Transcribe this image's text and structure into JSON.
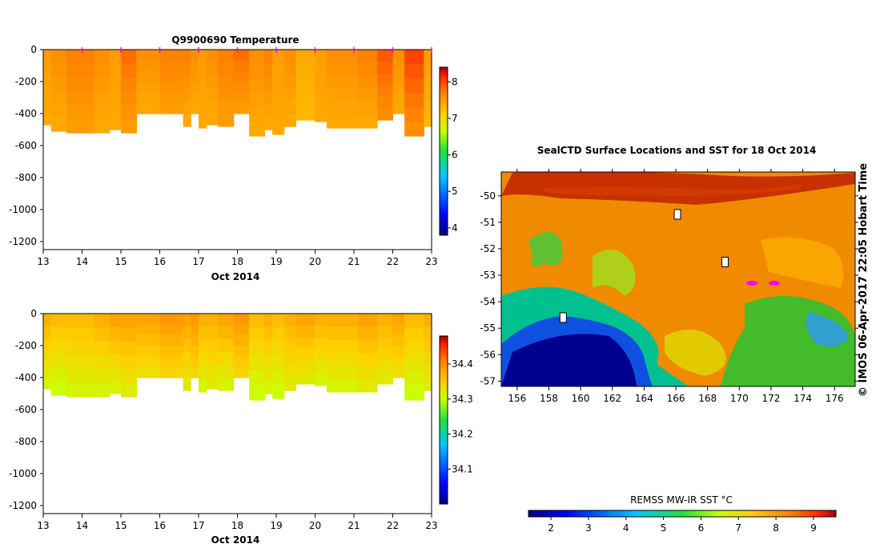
{
  "panels": {
    "temperature": {
      "title": "Q9900690  Temperature",
      "xlabel": "Oct 2014",
      "x_ticks": [
        "13",
        "14",
        "15",
        "16",
        "17",
        "18",
        "19",
        "20",
        "21",
        "22",
        "23"
      ],
      "y_ticks": [
        "0",
        "-200",
        "-400",
        "-600",
        "-800",
        "-1000",
        "-1200"
      ],
      "colorbar_ticks": [
        "4",
        "5",
        "6",
        "7",
        "8"
      ]
    },
    "salinity": {
      "title": "",
      "xlabel": "Oct 2014",
      "x_ticks": [
        "13",
        "14",
        "15",
        "16",
        "17",
        "18",
        "19",
        "20",
        "21",
        "22",
        "23"
      ],
      "y_ticks": [
        "0",
        "-200",
        "-400",
        "-600",
        "-800",
        "-1000",
        "-1200"
      ],
      "colorbar_ticks": [
        "34.1",
        "34.2",
        "34.3",
        "34.4"
      ]
    },
    "map": {
      "title": "SealCTD Surface Locations and SST for 18 Oct 2014",
      "x_ticks": [
        "156",
        "158",
        "160",
        "162",
        "164",
        "166",
        "168",
        "170",
        "172",
        "174",
        "176"
      ],
      "y_ticks": [
        "-50",
        "-51",
        "-52",
        "-53",
        "-54",
        "-55",
        "-56",
        "-57"
      ],
      "credit": "© IMOS 06-Apr-2017 22:05 Hobart Time",
      "colorbar_label": "REMSS MW-IR SST °C",
      "colorbar_ticks": [
        "2",
        "3",
        "4",
        "5",
        "6",
        "7",
        "8",
        "9"
      ]
    }
  },
  "colors": {
    "jet_ramp": [
      "#00007f",
      "#0000ff",
      "#00a0ff",
      "#00ffff",
      "#40ff80",
      "#a0ff00",
      "#ffff00",
      "#ffa000",
      "#ff4000",
      "#b00000",
      "#7f0000"
    ],
    "profile_marker": "#ff00ff"
  },
  "chart_data": [
    {
      "type": "heatmap",
      "title": "Q9900690  Temperature",
      "xlabel": "Oct 2014",
      "ylabel": "",
      "xlim": [
        13,
        23
      ],
      "ylim": [
        -1250,
        0
      ],
      "clim": [
        3.8,
        8.4
      ],
      "colorbar_ticks": [
        4,
        5,
        6,
        7,
        8
      ],
      "profiles": [
        {
          "time": 13.0,
          "max_depth": -470,
          "temp_surface": 7.5,
          "temp_deep": 7.4
        },
        {
          "time": 13.2,
          "max_depth": -510,
          "temp_surface": 7.6,
          "temp_deep": 7.4
        },
        {
          "time": 13.6,
          "max_depth": -520,
          "temp_surface": 7.7,
          "temp_deep": 7.5
        },
        {
          "time": 14.3,
          "max_depth": -520,
          "temp_surface": 7.6,
          "temp_deep": 7.4
        },
        {
          "time": 14.7,
          "max_depth": -500,
          "temp_surface": 7.5,
          "temp_deep": 7.4
        },
        {
          "time": 15.0,
          "max_depth": -520,
          "temp_surface": 7.8,
          "temp_deep": 7.5
        },
        {
          "time": 15.4,
          "max_depth": -400,
          "temp_surface": 7.6,
          "temp_deep": 7.4
        },
        {
          "time": 16.0,
          "max_depth": -400,
          "temp_surface": 7.7,
          "temp_deep": 7.5
        },
        {
          "time": 16.6,
          "max_depth": -480,
          "temp_surface": 7.7,
          "temp_deep": 7.4
        },
        {
          "time": 16.8,
          "max_depth": -400,
          "temp_surface": 7.6,
          "temp_deep": 7.4
        },
        {
          "time": 17.0,
          "max_depth": -490,
          "temp_surface": 7.5,
          "temp_deep": 7.4
        },
        {
          "time": 17.2,
          "max_depth": -470,
          "temp_surface": 7.6,
          "temp_deep": 7.4
        },
        {
          "time": 17.5,
          "max_depth": -480,
          "temp_surface": 7.7,
          "temp_deep": 7.5
        },
        {
          "time": 17.9,
          "max_depth": -400,
          "temp_surface": 7.8,
          "temp_deep": 7.5
        },
        {
          "time": 18.3,
          "max_depth": -540,
          "temp_surface": 7.6,
          "temp_deep": 7.4
        },
        {
          "time": 18.7,
          "max_depth": -500,
          "temp_surface": 7.7,
          "temp_deep": 7.4
        },
        {
          "time": 18.9,
          "max_depth": -530,
          "temp_surface": 7.5,
          "temp_deep": 7.4
        },
        {
          "time": 19.2,
          "max_depth": -480,
          "temp_surface": 7.6,
          "temp_deep": 7.4
        },
        {
          "time": 19.5,
          "max_depth": -440,
          "temp_surface": 7.4,
          "temp_deep": 7.3
        },
        {
          "time": 20.0,
          "max_depth": -450,
          "temp_surface": 7.5,
          "temp_deep": 7.4
        },
        {
          "time": 20.3,
          "max_depth": -490,
          "temp_surface": 7.6,
          "temp_deep": 7.4
        },
        {
          "time": 21.1,
          "max_depth": -490,
          "temp_surface": 7.7,
          "temp_deep": 7.4
        },
        {
          "time": 21.6,
          "max_depth": -440,
          "temp_surface": 7.9,
          "temp_deep": 7.6
        },
        {
          "time": 22.0,
          "max_depth": -400,
          "temp_surface": 7.6,
          "temp_deep": 7.4
        },
        {
          "time": 22.3,
          "max_depth": -540,
          "temp_surface": 8.0,
          "temp_deep": 7.6
        },
        {
          "time": 22.8,
          "max_depth": -480,
          "temp_surface": 7.5,
          "temp_deep": 7.3
        }
      ],
      "profile_markers": [
        14,
        15,
        16,
        17,
        18,
        19,
        20,
        21,
        22,
        23
      ]
    },
    {
      "type": "heatmap",
      "title": "",
      "xlabel": "Oct 2014",
      "ylabel": "",
      "xlim": [
        13,
        23
      ],
      "ylim": [
        -1250,
        0
      ],
      "clim": [
        34.0,
        34.48
      ],
      "colorbar_ticks": [
        34.1,
        34.2,
        34.3,
        34.4
      ],
      "profiles": [
        {
          "time": 13.0,
          "max_depth": -470,
          "sal_surface": 34.37,
          "sal_deep": 34.31
        },
        {
          "time": 13.2,
          "max_depth": -510,
          "sal_surface": 34.36,
          "sal_deep": 34.3
        },
        {
          "time": 13.6,
          "max_depth": -520,
          "sal_surface": 34.36,
          "sal_deep": 34.31
        },
        {
          "time": 14.3,
          "max_depth": -520,
          "sal_surface": 34.37,
          "sal_deep": 34.31
        },
        {
          "time": 14.7,
          "max_depth": -500,
          "sal_surface": 34.38,
          "sal_deep": 34.31
        },
        {
          "time": 15.0,
          "max_depth": -520,
          "sal_surface": 34.38,
          "sal_deep": 34.32
        },
        {
          "time": 15.4,
          "max_depth": -400,
          "sal_surface": 34.38,
          "sal_deep": 34.33
        },
        {
          "time": 16.0,
          "max_depth": -400,
          "sal_surface": 34.39,
          "sal_deep": 34.34
        },
        {
          "time": 16.6,
          "max_depth": -480,
          "sal_surface": 34.38,
          "sal_deep": 34.32
        },
        {
          "time": 16.8,
          "max_depth": -400,
          "sal_surface": 34.39,
          "sal_deep": 34.34
        },
        {
          "time": 17.0,
          "max_depth": -490,
          "sal_surface": 34.37,
          "sal_deep": 34.31
        },
        {
          "time": 17.2,
          "max_depth": -470,
          "sal_surface": 34.37,
          "sal_deep": 34.32
        },
        {
          "time": 17.5,
          "max_depth": -480,
          "sal_surface": 34.38,
          "sal_deep": 34.31
        },
        {
          "time": 17.9,
          "max_depth": -400,
          "sal_surface": 34.39,
          "sal_deep": 34.34
        },
        {
          "time": 18.3,
          "max_depth": -540,
          "sal_surface": 34.36,
          "sal_deep": 34.3
        },
        {
          "time": 18.7,
          "max_depth": -500,
          "sal_surface": 34.37,
          "sal_deep": 34.31
        },
        {
          "time": 18.9,
          "max_depth": -530,
          "sal_surface": 34.36,
          "sal_deep": 34.3
        },
        {
          "time": 19.2,
          "max_depth": -480,
          "sal_surface": 34.37,
          "sal_deep": 34.32
        },
        {
          "time": 19.5,
          "max_depth": -440,
          "sal_surface": 34.38,
          "sal_deep": 34.32
        },
        {
          "time": 20.0,
          "max_depth": -450,
          "sal_surface": 34.37,
          "sal_deep": 34.31
        },
        {
          "time": 20.3,
          "max_depth": -490,
          "sal_surface": 34.37,
          "sal_deep": 34.31
        },
        {
          "time": 21.1,
          "max_depth": -490,
          "sal_surface": 34.38,
          "sal_deep": 34.32
        },
        {
          "time": 21.6,
          "max_depth": -440,
          "sal_surface": 34.37,
          "sal_deep": 34.32
        },
        {
          "time": 22.0,
          "max_depth": -400,
          "sal_surface": 34.38,
          "sal_deep": 34.33
        },
        {
          "time": 22.3,
          "max_depth": -540,
          "sal_surface": 34.36,
          "sal_deep": 34.3
        },
        {
          "time": 22.8,
          "max_depth": -480,
          "sal_surface": 34.37,
          "sal_deep": 34.32
        }
      ]
    },
    {
      "type": "heatmap",
      "title": "SealCTD Surface Locations and SST for 18 Oct 2014",
      "xlim": [
        155,
        177.3
      ],
      "ylim": [
        -57.2,
        -49.1
      ],
      "clim": [
        1.4,
        9.6
      ],
      "colorbar_label": "REMSS MW-IR SST °C",
      "colorbar_ticks": [
        2,
        3,
        4,
        5,
        6,
        7,
        8,
        9
      ],
      "sst_regions": [
        {
          "lon": [
            155,
            177.3
          ],
          "lat": [
            -52,
            -49.1
          ],
          "sst": 8.2
        },
        {
          "lon": [
            155,
            163
          ],
          "lat": [
            -49.1,
            -50.2
          ],
          "sst": 9.1
        },
        {
          "lon": [
            163,
            168
          ],
          "lat": [
            -49.1,
            -50.6
          ],
          "sst": 9.4
        },
        {
          "lon": [
            155,
            177.3
          ],
          "lat": [
            -52,
            -53.6
          ],
          "sst": 7.8
        },
        {
          "lon": [
            155,
            162
          ],
          "lat": [
            -53,
            -54.6
          ],
          "sst": 6.2
        },
        {
          "lon": [
            155,
            158.5
          ],
          "lat": [
            -54.2,
            -57.2
          ],
          "sst": 4.3
        },
        {
          "lon": [
            158.5,
            163
          ],
          "lat": [
            -55.2,
            -57.2
          ],
          "sst": 2.1
        },
        {
          "lon": [
            163,
            170
          ],
          "lat": [
            -54,
            -57.2
          ],
          "sst": 7.3
        },
        {
          "lon": [
            170,
            177.3
          ],
          "lat": [
            -53.6,
            -57.2
          ],
          "sst": 5.8
        },
        {
          "lon": [
            173,
            177.3
          ],
          "lat": [
            -54.6,
            -55.6
          ],
          "sst": 4.6
        }
      ],
      "seal_locations": [
        {
          "lon": 166.1,
          "lat": -50.7,
          "marker": "white-box"
        },
        {
          "lon": 169.1,
          "lat": -52.5,
          "marker": "white-box"
        },
        {
          "lon": 158.9,
          "lat": -54.6,
          "marker": "white-box"
        },
        {
          "lon": 170.8,
          "lat": -53.3,
          "marker": "magenta"
        },
        {
          "lon": 172.2,
          "lat": -53.3,
          "marker": "magenta"
        }
      ]
    }
  ]
}
